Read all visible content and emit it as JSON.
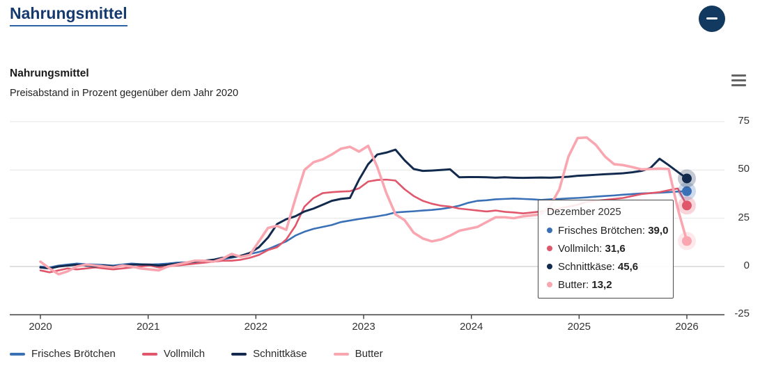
{
  "page": {
    "header_link": "Nahrungsmittel"
  },
  "card": {
    "title": "Nahrungsmittel",
    "subtitle": "Preisabstand in Prozent gegenüber dem Jahr 2020"
  },
  "tooltip": {
    "title": "Dezember 2025",
    "items": [
      {
        "label": "Frisches Brötchen",
        "value": "39,0",
        "color": "#3a70b5"
      },
      {
        "label": "Vollmilch",
        "value": "31,6",
        "color": "#e0566b"
      },
      {
        "label": "Schnittkäse",
        "value": "45,6",
        "color": "#122a4e"
      },
      {
        "label": "Butter",
        "value": "13,2",
        "color": "#f9a6b0"
      }
    ]
  },
  "colors": {
    "grid": "#e4e4e4",
    "zero_line": "#c2c2c2",
    "axis": "#3c3c3c",
    "accent_navy": "#12395f",
    "link": "#163a6e"
  },
  "chart_data": {
    "type": "line",
    "title": "Nahrungsmittel",
    "subtitle": "Preisabstand in Prozent gegenüber dem Jahr 2020",
    "x_ticks": [
      2020,
      2021,
      2022,
      2023,
      2024,
      2025,
      2026
    ],
    "y_ticks": [
      75,
      50,
      25,
      0,
      -25
    ],
    "ylim": [
      -25,
      75
    ],
    "x_unit": "Monat, Januar 2020 bis Dezember 2025",
    "grid": true,
    "legend_position": "bottom",
    "tooltip_month": "Dezember 2025",
    "series": [
      {
        "name": "Frisches Brötchen",
        "color": "#3a70b5",
        "width": 2.6,
        "last_value_label": "39,0",
        "values": [
          0,
          -0.5,
          0.5,
          1,
          1.5,
          1.2,
          1,
          0.8,
          0.5,
          1,
          1.5,
          1.2,
          1,
          1.2,
          1.5,
          2,
          2.2,
          2.5,
          3,
          3.2,
          3.8,
          4.5,
          5.5,
          6.5,
          7.5,
          9,
          11,
          13,
          16,
          18,
          19.5,
          20.5,
          21.5,
          23,
          23.8,
          24.6,
          25.3,
          26,
          26.8,
          28,
          28.3,
          28.6,
          29,
          29.3,
          29.8,
          30.5,
          31.5,
          33,
          34,
          34.3,
          34.8,
          35,
          35.2,
          35,
          34.8,
          34.5,
          34.8,
          35,
          35.3,
          35.5,
          35.8,
          36.2,
          36.5,
          36.8,
          37.2,
          37.5,
          37.8,
          38,
          38.2,
          38.5,
          38.8,
          39
        ]
      },
      {
        "name": "Vollmilch",
        "color": "#e0566b",
        "width": 2.6,
        "last_value_label": "31,6",
        "values": [
          -2,
          -3,
          -2,
          -1,
          -1.5,
          -1,
          -0.5,
          -1,
          -1.5,
          -1,
          -0.5,
          0,
          0.5,
          -0.5,
          0,
          0.5,
          1,
          1.5,
          2,
          2.5,
          3,
          3,
          3.5,
          4.5,
          6,
          8.5,
          10,
          14,
          21,
          31,
          35.5,
          38,
          38.5,
          38.8,
          39,
          40.5,
          44,
          44.8,
          45,
          44.5,
          40,
          36.5,
          34,
          32.5,
          31.5,
          31,
          30,
          29.5,
          29,
          28.5,
          29,
          28.3,
          28,
          27.5,
          28,
          28.5,
          29.3,
          30,
          31,
          32,
          33.5,
          34,
          34.5,
          35,
          35.5,
          36.5,
          37.5,
          38,
          38.5,
          39.5,
          40.4,
          31.6
        ]
      },
      {
        "name": "Schnittkäse",
        "color": "#122a4e",
        "width": 3,
        "last_value_label": "45,6",
        "values": [
          -0.5,
          -1,
          0,
          0.5,
          1,
          0.5,
          0,
          0.5,
          0,
          0.5,
          1,
          1,
          1,
          0.5,
          1,
          1.5,
          2,
          2.5,
          3,
          3.5,
          4.5,
          5,
          5.5,
          7,
          10,
          15,
          22,
          24.5,
          26,
          28.5,
          30,
          32,
          34,
          35,
          35.5,
          45,
          53,
          58,
          59,
          60.5,
          55,
          50.5,
          49.5,
          49.7,
          50,
          50.3,
          46.2,
          46.3,
          46.3,
          46.2,
          46,
          46.2,
          46,
          45.9,
          46,
          46.1,
          46,
          46.2,
          46.5,
          47,
          47.2,
          47.5,
          47.8,
          48,
          48.3,
          48.8,
          49.5,
          51,
          55.8,
          52.5,
          49,
          45.6
        ]
      },
      {
        "name": "Butter",
        "color": "#f9a6b0",
        "width": 3.6,
        "last_value_label": "13,2",
        "values": [
          2.5,
          -1,
          -4,
          -2.5,
          0,
          1,
          0.5,
          0,
          -0.5,
          0.5,
          0,
          -1,
          -1.5,
          -2,
          0,
          1,
          2,
          3,
          3,
          2.5,
          4,
          6.5,
          5,
          6,
          13,
          20,
          21,
          19,
          35,
          50,
          54,
          55.5,
          58,
          61,
          62,
          59.5,
          62.5,
          51.5,
          38,
          27,
          24,
          17.5,
          14.5,
          13,
          14,
          16,
          18.5,
          19.5,
          20.5,
          23,
          25.5,
          25.5,
          25,
          26,
          26.5,
          27,
          31.5,
          40,
          57,
          66.5,
          66.8,
          63,
          57,
          53,
          52.5,
          51.5,
          50.3,
          50.5,
          50.7,
          50.5,
          30,
          13.2
        ]
      }
    ]
  }
}
